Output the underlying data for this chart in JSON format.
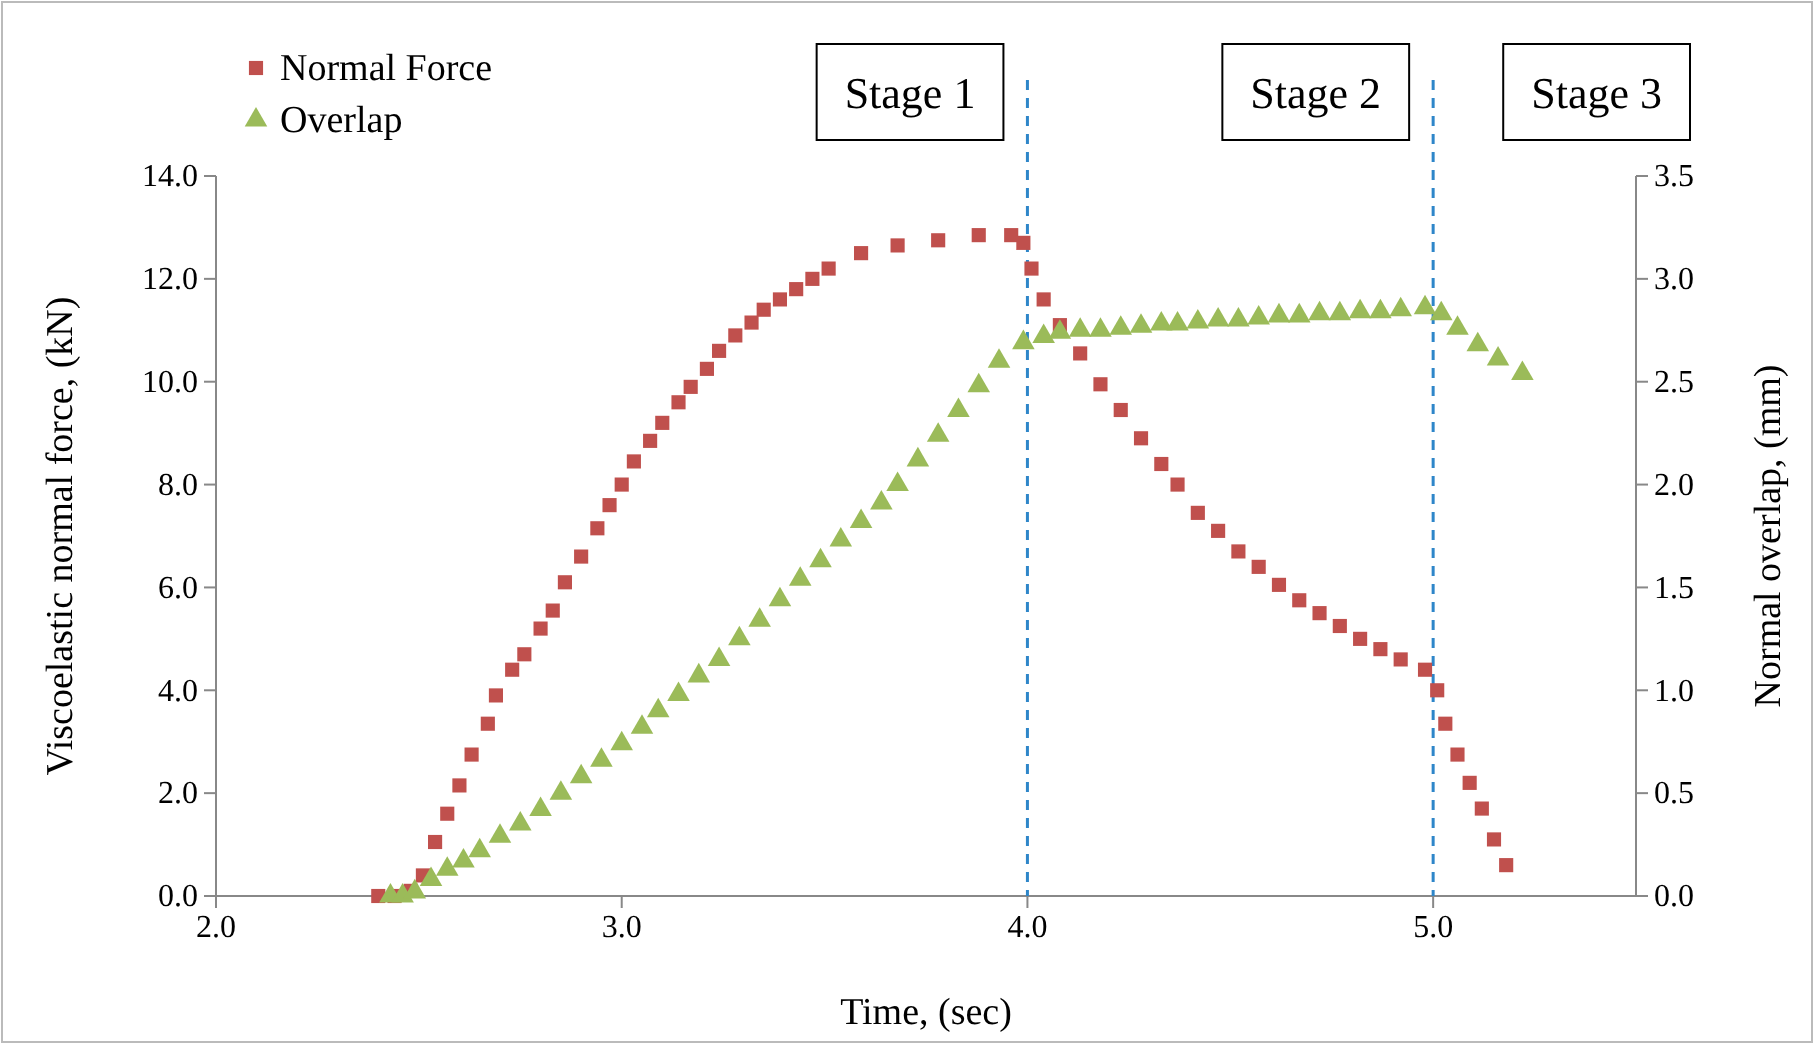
{
  "chart_data": {
    "type": "scatter",
    "xlabel": "Time, (sec)",
    "ylabel": "Viscoelastic normal force, (kN)",
    "y2label": "Normal overlap, (mm)",
    "xlim": [
      2,
      5.5
    ],
    "xticks": [
      {
        "value": 2,
        "label": "2.0"
      },
      {
        "value": 3,
        "label": "3.0"
      },
      {
        "value": 4,
        "label": "4.0"
      },
      {
        "value": 5,
        "label": "5.0"
      }
    ],
    "ylim": [
      0,
      14
    ],
    "yticks": [
      {
        "value": 0,
        "label": "0.0"
      },
      {
        "value": 2,
        "label": "2.0"
      },
      {
        "value": 4,
        "label": "4.0"
      },
      {
        "value": 6,
        "label": "6.0"
      },
      {
        "value": 8,
        "label": "8.0"
      },
      {
        "value": 10,
        "label": "10.0"
      },
      {
        "value": 12,
        "label": "12.0"
      },
      {
        "value": 14,
        "label": "14.0"
      }
    ],
    "y2lim": [
      0,
      3.5
    ],
    "y2ticks": [
      {
        "value": 0,
        "label": "0.0"
      },
      {
        "value": 0.5,
        "label": "0.5"
      },
      {
        "value": 1,
        "label": "1.0"
      },
      {
        "value": 1.5,
        "label": "1.5"
      },
      {
        "value": 2,
        "label": "2.0"
      },
      {
        "value": 2.5,
        "label": "2.5"
      },
      {
        "value": 3,
        "label": "3.0"
      },
      {
        "value": 3.5,
        "label": "3.5"
      }
    ],
    "legend": "top left",
    "series": [
      {
        "name": "Normal Force",
        "color": "#c0504d",
        "marker": "square",
        "x": [
          2.4,
          2.44,
          2.48,
          2.51,
          2.54,
          2.57,
          2.6,
          2.63,
          2.67,
          2.69,
          2.73,
          2.76,
          2.8,
          2.83,
          2.86,
          2.9,
          2.94,
          2.97,
          3.0,
          3.03,
          3.07,
          3.1,
          3.14,
          3.17,
          3.21,
          3.24,
          3.28,
          3.32,
          3.35,
          3.39,
          3.43,
          3.47,
          3.51,
          3.59,
          3.68,
          3.78,
          3.88,
          3.96,
          3.99,
          4.01,
          4.04,
          4.08,
          4.13,
          4.18,
          4.23,
          4.28,
          4.33,
          4.37,
          4.42,
          4.47,
          4.52,
          4.57,
          4.62,
          4.67,
          4.72,
          4.77,
          4.82,
          4.87,
          4.92,
          4.98,
          5.01,
          5.03,
          5.06,
          5.09,
          5.12,
          5.15,
          5.18
        ],
        "values": [
          0,
          0,
          0.1,
          0.4,
          1.05,
          1.6,
          2.15,
          2.75,
          3.35,
          3.9,
          4.4,
          4.7,
          5.2,
          5.55,
          6.1,
          6.6,
          7.15,
          7.6,
          8.0,
          8.45,
          8.85,
          9.2,
          9.6,
          9.9,
          10.25,
          10.6,
          10.9,
          11.15,
          11.4,
          11.6,
          11.8,
          12.0,
          12.2,
          12.5,
          12.65,
          12.75,
          12.85,
          12.85,
          12.7,
          12.2,
          11.6,
          11.1,
          10.55,
          9.95,
          9.45,
          8.9,
          8.4,
          8.0,
          7.45,
          7.1,
          6.7,
          6.4,
          6.05,
          5.75,
          5.5,
          5.25,
          5.0,
          4.8,
          4.6,
          4.4,
          4.0,
          3.35,
          2.75,
          2.2,
          1.7,
          1.1,
          0.6
        ]
      },
      {
        "name": "Overlap",
        "color": "#9bbb59",
        "marker": "triangle",
        "axis": "y2",
        "x": [
          2.43,
          2.46,
          2.49,
          2.53,
          2.57,
          2.61,
          2.65,
          2.7,
          2.75,
          2.8,
          2.85,
          2.9,
          2.95,
          3.0,
          3.05,
          3.09,
          3.14,
          3.19,
          3.24,
          3.29,
          3.34,
          3.39,
          3.44,
          3.49,
          3.54,
          3.59,
          3.64,
          3.68,
          3.73,
          3.78,
          3.83,
          3.88,
          3.93,
          3.99,
          4.04,
          4.08,
          4.13,
          4.18,
          4.23,
          4.28,
          4.33,
          4.37,
          4.42,
          4.47,
          4.52,
          4.57,
          4.62,
          4.67,
          4.72,
          4.77,
          4.82,
          4.87,
          4.92,
          4.98,
          5.02,
          5.06,
          5.11,
          5.16,
          5.22
        ],
        "values": [
          0,
          0,
          0.02,
          0.08,
          0.13,
          0.17,
          0.22,
          0.29,
          0.35,
          0.42,
          0.5,
          0.58,
          0.66,
          0.74,
          0.82,
          0.9,
          0.98,
          1.07,
          1.15,
          1.25,
          1.34,
          1.44,
          1.54,
          1.63,
          1.73,
          1.82,
          1.91,
          2.0,
          2.12,
          2.24,
          2.36,
          2.48,
          2.6,
          2.69,
          2.72,
          2.74,
          2.75,
          2.75,
          2.76,
          2.77,
          2.78,
          2.78,
          2.79,
          2.8,
          2.8,
          2.81,
          2.82,
          2.82,
          2.83,
          2.83,
          2.84,
          2.84,
          2.85,
          2.86,
          2.83,
          2.76,
          2.68,
          2.61,
          2.54
        ]
      }
    ],
    "ref_lines": [
      {
        "axis": "x",
        "value": 4,
        "color": "#2e86c9",
        "line_style": "dashed"
      },
      {
        "axis": "x",
        "value": 5,
        "color": "#2e86c9",
        "line_style": "dashed"
      }
    ],
    "annotations": [
      "Stage 1",
      "Stage 2",
      "Stage 3"
    ]
  }
}
